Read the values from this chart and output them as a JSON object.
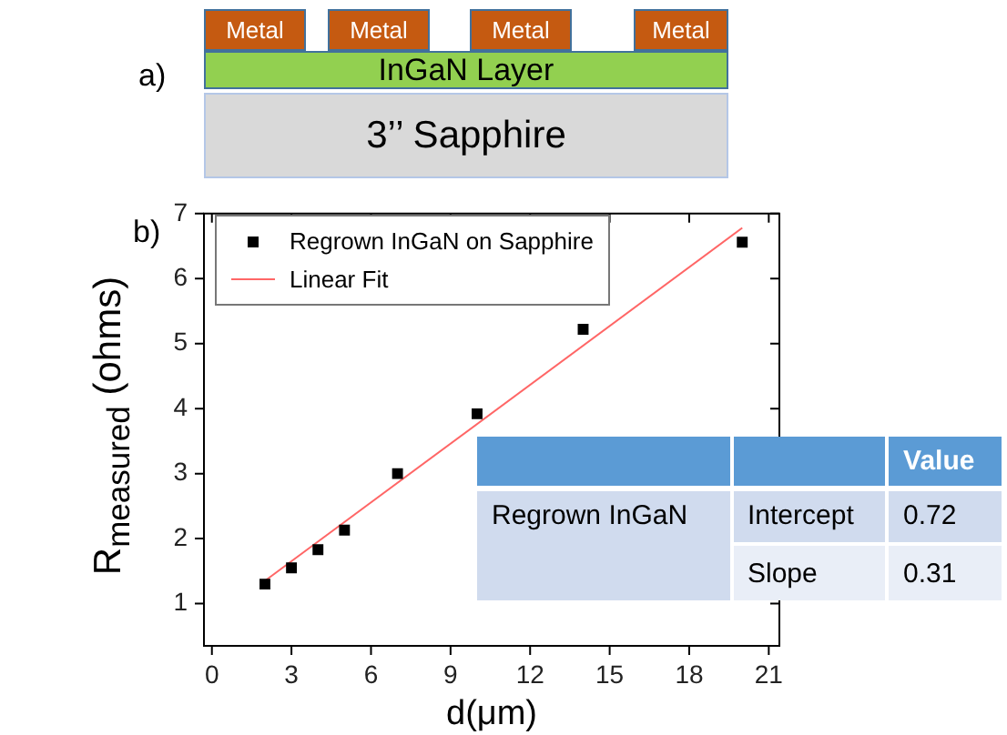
{
  "chart_data": {
    "type": "scatter",
    "xlabel": "d(μm)",
    "ylabel": "R$_{measured}$ (ohms)",
    "x": [
      2,
      3,
      4,
      5,
      7,
      10,
      14,
      20
    ],
    "series": [
      {
        "name": "Regrown InGaN on Sapphire",
        "color": "#000000",
        "values": [
          1.3,
          1.55,
          1.83,
          2.13,
          3.0,
          3.92,
          5.22,
          6.56
        ]
      },
      {
        "name": "Linear Fit",
        "type": "line",
        "color": "#ff6666",
        "marker": "none",
        "x": [
          2,
          20
        ],
        "values": [
          1.35,
          6.78
        ]
      }
    ],
    "xlim": [
      -0.3,
      21.4
    ],
    "xticks": [
      0,
      3,
      6,
      9,
      12,
      15,
      18,
      21
    ],
    "ylim": [
      0.35,
      7
    ],
    "yticks": [
      1,
      2,
      3,
      4,
      5,
      6,
      7
    ],
    "marker": "square",
    "legend": "top left",
    "grid": false,
    "annotations": [
      "a)",
      "Metal",
      "Metal",
      "Metal",
      "Metal",
      "InGaN Layer",
      "3’’ Sapphire",
      "b)",
      "Value",
      "Regrown InGaN",
      "Intercept",
      "0.72",
      "Slope",
      "0.31"
    ]
  }
}
